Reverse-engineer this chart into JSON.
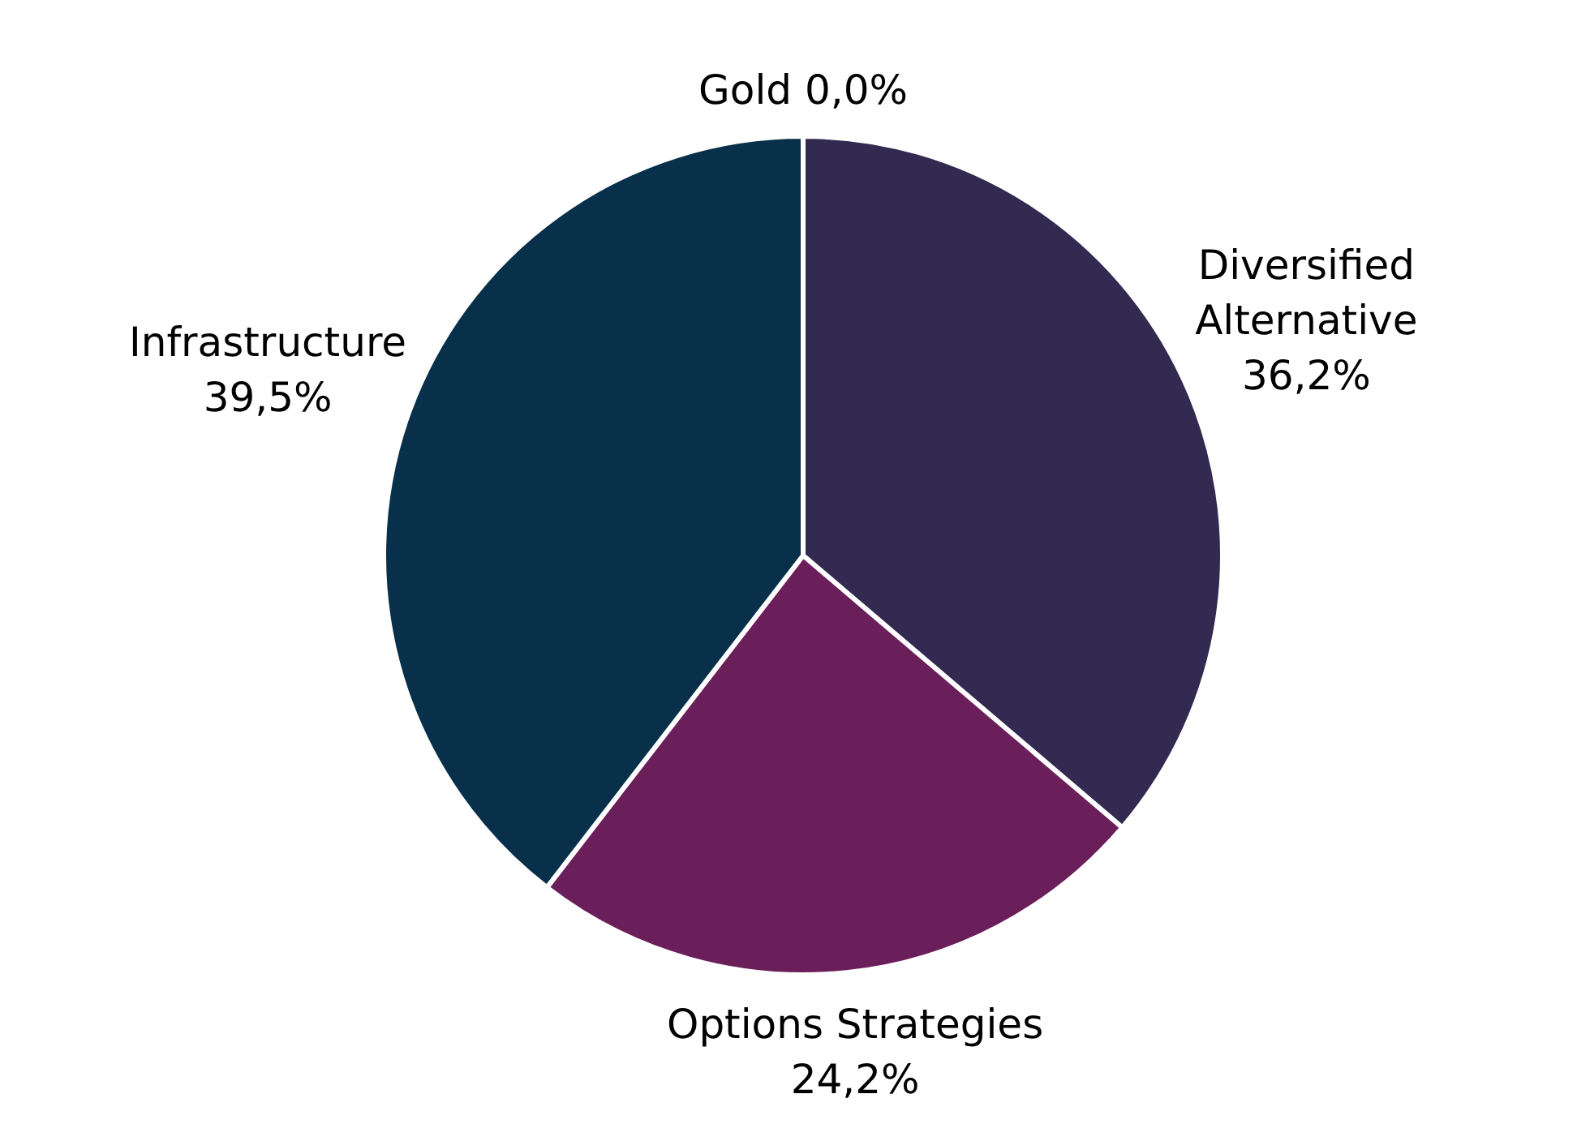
{
  "chart_data": {
    "type": "pie",
    "categories": [
      "Diversified Alternative",
      "Options Strategies",
      "Infrastructure",
      "Gold"
    ],
    "values": [
      36.2,
      24.2,
      39.5,
      0.0
    ],
    "colors": [
      "#322a50",
      "#6b1f5a",
      "#08304a",
      "#c9a227"
    ],
    "value_labels": [
      "36,2%",
      "24,2%",
      "39,5%",
      "0,0%"
    ],
    "legend": false
  }
}
